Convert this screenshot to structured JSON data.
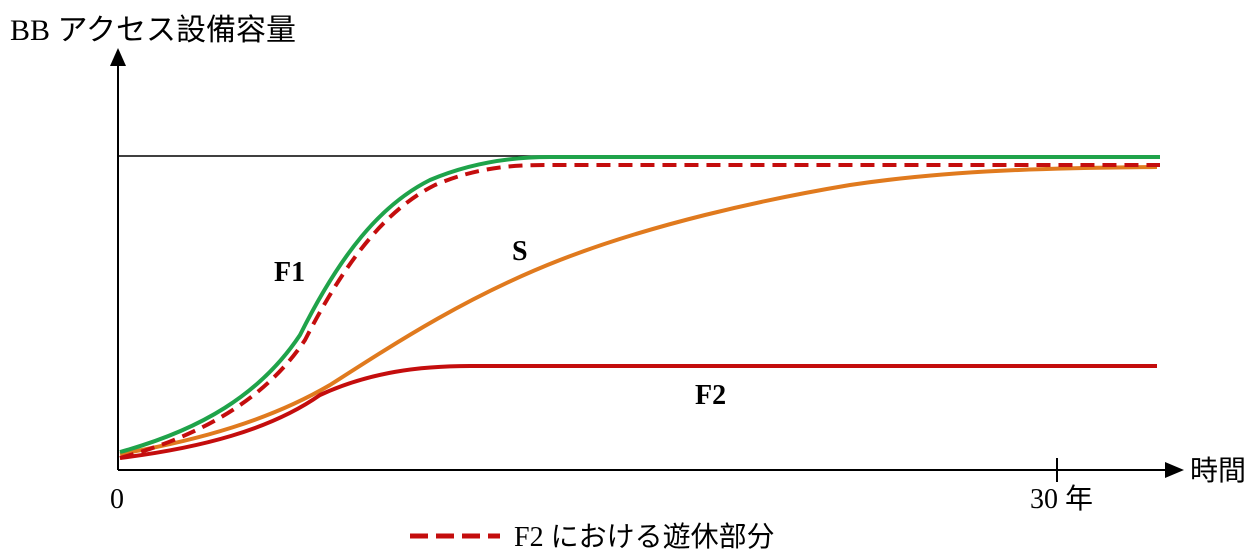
{
  "title": "",
  "y_axis_label": "BB アクセス設備容量",
  "x_axis_label": "時間",
  "x_ticks": [
    "0",
    "30 年"
  ],
  "curves": [
    {
      "id": "F1",
      "label": "F1",
      "color": "#1fa34a",
      "style": "solid"
    },
    {
      "id": "S",
      "label": "S",
      "color": "#e07a1e",
      "style": "solid"
    },
    {
      "id": "F2",
      "label": "F2",
      "color": "#c40d0d",
      "style": "solid"
    },
    {
      "id": "F2-idle",
      "label": "",
      "color": "#c40d0d",
      "style": "dashed"
    }
  ],
  "legend": [
    {
      "label": "F2 における遊休部分",
      "color": "#c40d0d",
      "style": "dashed"
    }
  ],
  "reference_line": {
    "description": "",
    "color": "#000000"
  }
}
